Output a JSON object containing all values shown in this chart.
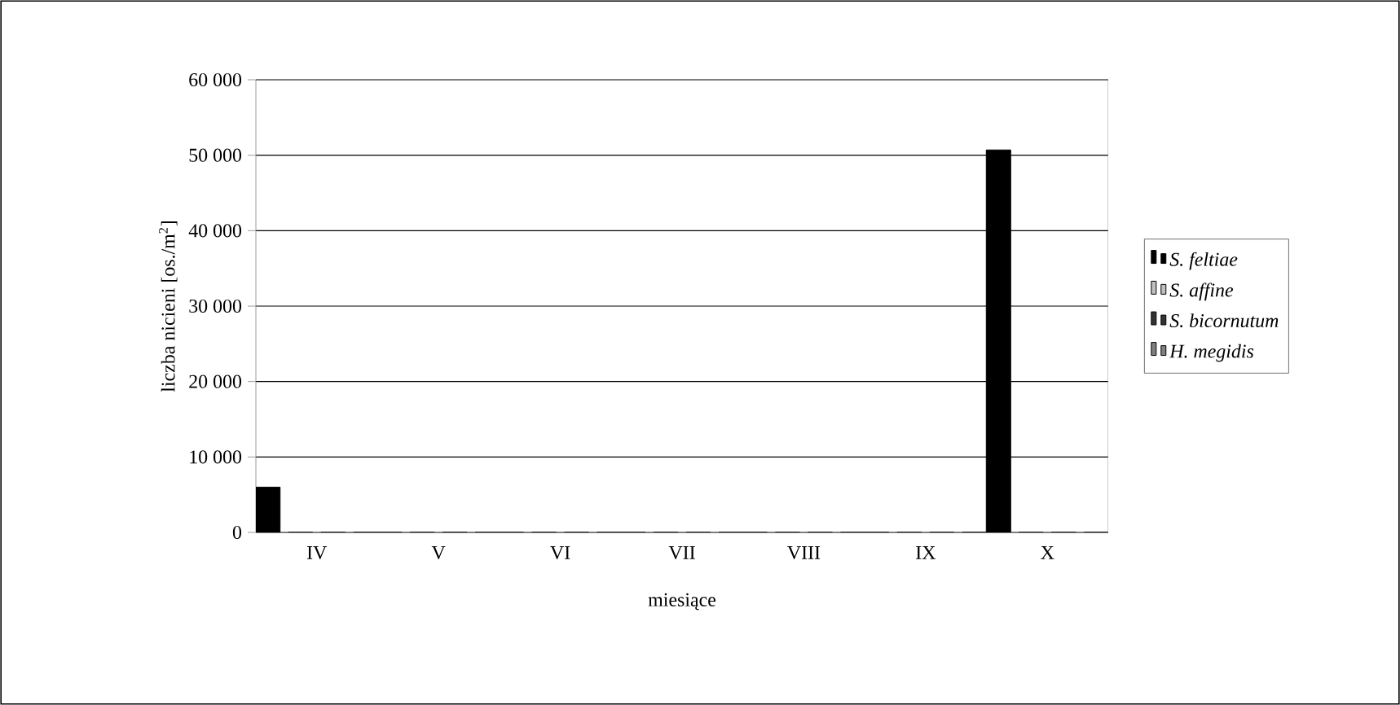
{
  "chart_data": {
    "type": "bar",
    "xlabel": "miesiące",
    "ylabel": "liczba nicieni [os./m$^{2}$]",
    "categories": [
      "IV",
      "V",
      "VI",
      "VII",
      "VIII",
      "IX",
      "X"
    ],
    "series": [
      {
        "name": "S. feltiae",
        "color": "#000000",
        "values": [
          6000,
          0,
          0,
          0,
          0,
          0,
          50700
        ]
      },
      {
        "name": "S. affine",
        "color": "#c0c0c0",
        "values": [
          0,
          0,
          0,
          0,
          0,
          0,
          0
        ]
      },
      {
        "name": "S. bicornutum",
        "color": "#333333",
        "values": [
          0,
          0,
          0,
          0,
          0,
          0,
          0
        ]
      },
      {
        "name": "H. megidis",
        "color": "#808080",
        "values": [
          0,
          0,
          0,
          0,
          0,
          0,
          0
        ]
      }
    ],
    "ylim": [
      0,
      60000
    ],
    "yticks": [
      0,
      {
        "value": 10000,
        "label": "10 000"
      },
      {
        "value": 20000,
        "label": "20 000"
      },
      {
        "value": 30000,
        "label": "30 000"
      },
      {
        "value": 40000,
        "label": "40 000"
      },
      {
        "value": 50000,
        "label": "50 000"
      },
      {
        "value": 60000,
        "label": "60 000"
      }
    ],
    "grid": "y",
    "legend": "right"
  }
}
